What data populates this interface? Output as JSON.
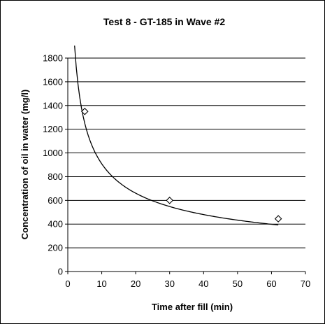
{
  "chart_data": {
    "type": "scatter",
    "title": "Test 8 - GT-185 in Wave #2",
    "xlabel": "Time after fill (min)",
    "ylabel": "Concentration of oil in water (mg/l)",
    "xlim": [
      0,
      70
    ],
    "ylim": [
      0,
      1800
    ],
    "xticks": [
      0,
      10,
      20,
      30,
      40,
      50,
      60,
      70
    ],
    "yticks": [
      0,
      200,
      400,
      600,
      800,
      1000,
      1200,
      1400,
      1600,
      1800
    ],
    "grid": "horizontal",
    "legend": "none",
    "series": [
      {
        "marker": "diamond-open",
        "x": [
          5,
          30,
          62
        ],
        "y": [
          1350,
          600,
          445
        ]
      }
    ],
    "trendline": {
      "kind": "power",
      "x_range": [
        2,
        62
      ],
      "coefficient": 2620,
      "exponent": -0.46
    },
    "colors": {
      "marker": "#000000",
      "line": "#000000",
      "grid": "#000000"
    }
  }
}
